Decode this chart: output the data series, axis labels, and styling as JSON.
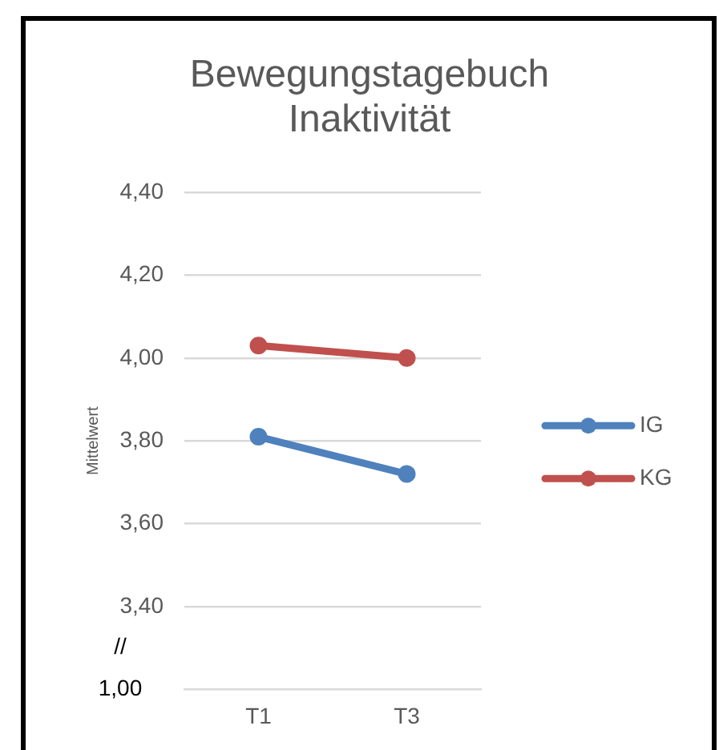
{
  "chart_data": {
    "type": "line",
    "title": "Bewegungstagebuch Inaktivität",
    "ylabel": "Mittelwert",
    "categories": [
      "T1",
      "T3"
    ],
    "series": [
      {
        "name": "IG",
        "color": "#4f81bd",
        "values": [
          3.81,
          3.72
        ]
      },
      {
        "name": "KG",
        "color": "#c0504d",
        "values": [
          4.03,
          4.0
        ]
      }
    ],
    "ylim": [
      3.2,
      4.4
    ],
    "yticks": [
      {
        "value": 3.4,
        "label": "3,40"
      },
      {
        "value": 3.6,
        "label": "3,60"
      },
      {
        "value": 3.8,
        "label": "3,80"
      },
      {
        "value": 4.0,
        "label": "4,00"
      },
      {
        "value": 4.2,
        "label": "4,20"
      },
      {
        "value": 4.4,
        "label": "4,40"
      }
    ],
    "annotations": [
      "//",
      "1,00"
    ],
    "grid": "y",
    "legend": "right",
    "marker": "circle",
    "line_style": "solid"
  }
}
